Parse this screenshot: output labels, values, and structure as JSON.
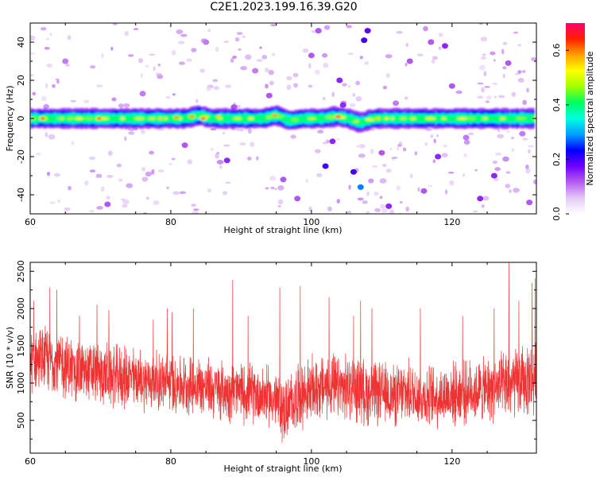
{
  "title": "C2E1.2023.199.16.39.G20",
  "chart_data": [
    {
      "type": "heatmap",
      "xlabel": "Height of straight line (km)",
      "ylabel": "Frequency (Hz)",
      "xlim": [
        60,
        132
      ],
      "ylim": [
        -50,
        50
      ],
      "x_ticks": [
        "60",
        "80",
        "100",
        "120"
      ],
      "y_ticks": [
        "40",
        "20",
        "0",
        "-20",
        "-40"
      ],
      "colorbar": {
        "label": "Normalized spectral amplitude",
        "range": [
          0.0,
          0.7
        ],
        "ticks": [
          "0.0",
          "0.2",
          "0.4",
          "0.6"
        ],
        "colors": [
          "#ffffff",
          "#e3c8f5",
          "#b45cf0",
          "#6f00ff",
          "#0000ff",
          "#00a0ff",
          "#00ffe0",
          "#00ff60",
          "#a0ff00",
          "#ffff00",
          "#ffa000",
          "#ff2000",
          "#ff0070"
        ]
      },
      "band": {
        "center_hz": 0,
        "half_width_hz": 4,
        "wiggles": [
          {
            "x": 84,
            "y": 1.5
          },
          {
            "x": 95,
            "y": 1.5
          },
          {
            "x": 97,
            "y": -1
          },
          {
            "x": 103.5,
            "y": 1
          },
          {
            "x": 107,
            "y": -2
          }
        ],
        "hot_spots": [
          {
            "x": 61.8,
            "y": 0,
            "v": 0.66
          },
          {
            "x": 64.5,
            "y": 0,
            "v": 0.5
          },
          {
            "x": 69.8,
            "y": 0,
            "v": 0.66
          },
          {
            "x": 78.5,
            "y": 0,
            "v": 0.55
          },
          {
            "x": 80.8,
            "y": 0.5,
            "v": 0.6
          },
          {
            "x": 83,
            "y": 1,
            "v": 0.6
          },
          {
            "x": 84.6,
            "y": 0,
            "v": 0.68
          },
          {
            "x": 86.8,
            "y": 1,
            "v": 0.55
          },
          {
            "x": 94.8,
            "y": 1.5,
            "v": 0.6
          },
          {
            "x": 103.8,
            "y": 1,
            "v": 0.7
          },
          {
            "x": 109.5,
            "y": 0,
            "v": 0.55
          },
          {
            "x": 111.5,
            "y": 0,
            "v": 0.5
          }
        ]
      },
      "noise_blobs": [
        {
          "x": 65,
          "y": 30,
          "v": 0.1
        },
        {
          "x": 71,
          "y": -45,
          "v": 0.12
        },
        {
          "x": 76,
          "y": 13,
          "v": 0.1
        },
        {
          "x": 82,
          "y": -14,
          "v": 0.12
        },
        {
          "x": 85,
          "y": 40,
          "v": 0.1
        },
        {
          "x": 88,
          "y": -22,
          "v": 0.15
        },
        {
          "x": 92,
          "y": 25,
          "v": 0.1
        },
        {
          "x": 94,
          "y": 12,
          "v": 0.12
        },
        {
          "x": 96,
          "y": -32,
          "v": 0.12
        },
        {
          "x": 98,
          "y": -42,
          "v": 0.12
        },
        {
          "x": 100,
          "y": 33,
          "v": 0.12
        },
        {
          "x": 102,
          "y": -25,
          "v": 0.2
        },
        {
          "x": 103,
          "y": -12,
          "v": 0.15
        },
        {
          "x": 104,
          "y": 20,
          "v": 0.15
        },
        {
          "x": 106,
          "y": -28,
          "v": 0.2
        },
        {
          "x": 107,
          "y": -36,
          "v": 0.28
        },
        {
          "x": 107.5,
          "y": 41,
          "v": 0.2
        },
        {
          "x": 108,
          "y": 46,
          "v": 0.18
        },
        {
          "x": 110,
          "y": -18,
          "v": 0.12
        },
        {
          "x": 112,
          "y": 8,
          "v": 0.1
        },
        {
          "x": 114,
          "y": 30,
          "v": 0.12
        },
        {
          "x": 116,
          "y": -38,
          "v": 0.12
        },
        {
          "x": 118,
          "y": -20,
          "v": 0.15
        },
        {
          "x": 120,
          "y": 17,
          "v": 0.12
        },
        {
          "x": 122,
          "y": -10,
          "v": 0.1
        },
        {
          "x": 124,
          "y": -42,
          "v": 0.15
        },
        {
          "x": 126,
          "y": -30,
          "v": 0.15
        },
        {
          "x": 128,
          "y": 29,
          "v": 0.12
        },
        {
          "x": 130,
          "y": -8,
          "v": 0.1
        },
        {
          "x": 131,
          "y": -44,
          "v": 0.12
        },
        {
          "x": 101,
          "y": 46,
          "v": 0.12
        },
        {
          "x": 89,
          "y": 6,
          "v": 0.12
        },
        {
          "x": 104.5,
          "y": 7,
          "v": 0.15
        },
        {
          "x": 117,
          "y": 40,
          "v": 0.12
        },
        {
          "x": 111,
          "y": -46,
          "v": 0.15
        },
        {
          "x": 119,
          "y": 38,
          "v": 0.15
        }
      ]
    },
    {
      "type": "line",
      "xlabel": "Height of straight line (km)",
      "ylabel": "SNR (10 * v/v)",
      "xlim": [
        60,
        132
      ],
      "ylim": [
        60,
        2620
      ],
      "x_ticks": [
        "60",
        "80",
        "100",
        "120"
      ],
      "y_ticks": [
        "500",
        "1000",
        "1500",
        "2000",
        "2500"
      ],
      "grid": false,
      "series": [
        {
          "color": "#ee3333",
          "envelope_x": [
            60,
            62,
            64,
            66,
            68,
            70,
            72,
            74,
            76,
            78,
            80,
            82,
            84,
            86,
            88,
            90,
            92,
            94,
            95,
            96,
            97,
            98,
            100,
            102,
            104,
            106,
            108,
            110,
            112,
            114,
            116,
            118,
            120,
            122,
            124,
            126,
            128,
            130,
            132
          ],
          "mean": [
            1300,
            1320,
            1280,
            1180,
            1150,
            1120,
            1080,
            1080,
            1040,
            1020,
            1000,
            980,
            970,
            920,
            900,
            880,
            860,
            820,
            760,
            620,
            700,
            820,
            900,
            960,
            920,
            940,
            860,
            860,
            830,
            880,
            820,
            820,
            850,
            880,
            900,
            920,
            960,
            1020,
            1080
          ],
          "spread": [
            380,
            420,
            420,
            420,
            400,
            400,
            400,
            400,
            380,
            380,
            380,
            380,
            380,
            380,
            380,
            380,
            380,
            380,
            380,
            420,
            420,
            420,
            420,
            420,
            420,
            420,
            420,
            400,
            400,
            400,
            400,
            400,
            400,
            400,
            400,
            420,
            450,
            460,
            460
          ],
          "peaks": [
            {
              "x": 60.5,
              "y": 2100
            },
            {
              "x": 62.8,
              "y": 2280
            },
            {
              "x": 63.8,
              "y": 2250
            },
            {
              "x": 67,
              "y": 1900
            },
            {
              "x": 69.5,
              "y": 2050
            },
            {
              "x": 71.2,
              "y": 1980
            },
            {
              "x": 77.5,
              "y": 1850
            },
            {
              "x": 79.5,
              "y": 2000
            },
            {
              "x": 80.2,
              "y": 1950
            },
            {
              "x": 83.2,
              "y": 2000
            },
            {
              "x": 88.8,
              "y": 2380
            },
            {
              "x": 91,
              "y": 1900
            },
            {
              "x": 95.5,
              "y": 2280
            },
            {
              "x": 98.4,
              "y": 2300
            },
            {
              "x": 102.5,
              "y": 2150
            },
            {
              "x": 106,
              "y": 1900
            },
            {
              "x": 107,
              "y": 2100
            },
            {
              "x": 108.6,
              "y": 2000
            },
            {
              "x": 115.5,
              "y": 2000
            },
            {
              "x": 121.5,
              "y": 1900
            },
            {
              "x": 126,
              "y": 2000
            },
            {
              "x": 128.1,
              "y": 2620
            },
            {
              "x": 129.5,
              "y": 2100
            },
            {
              "x": 131.4,
              "y": 2340
            },
            {
              "x": 131.8,
              "y": 2400
            }
          ]
        }
      ]
    }
  ]
}
